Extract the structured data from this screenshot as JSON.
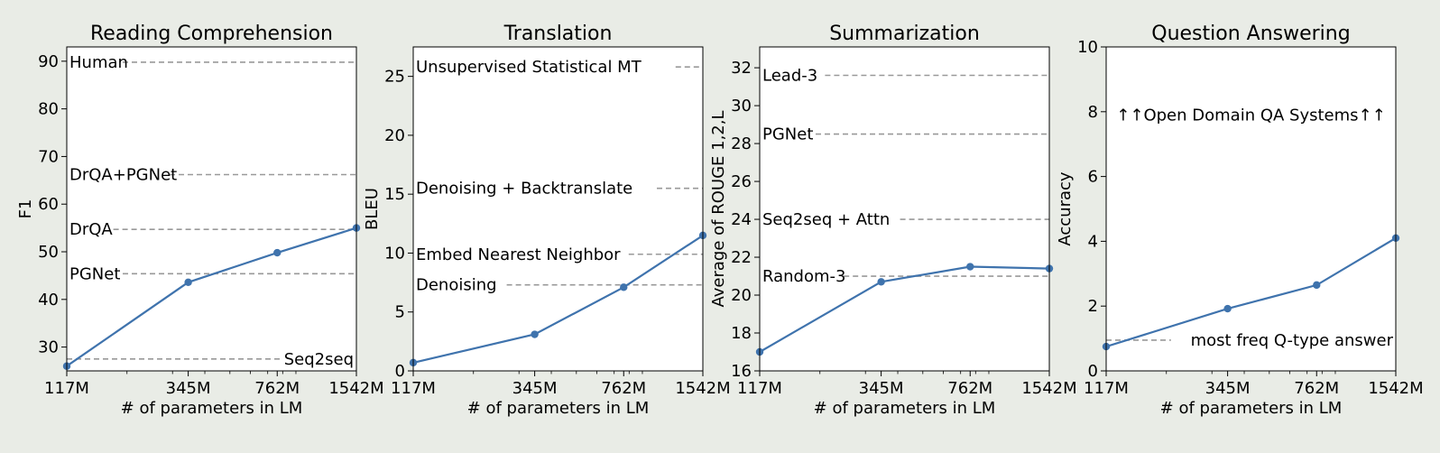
{
  "chart_data": [
    {
      "type": "line",
      "title": "Reading Comprehension",
      "xlabel": "# of parameters in LM",
      "ylabel": "F1",
      "x": [
        117,
        345,
        762,
        1542
      ],
      "x_tick_labels": [
        "117M",
        "345M",
        "762M",
        "1542M"
      ],
      "x_scale": "log",
      "xlim": [
        117,
        1542
      ],
      "ylim": [
        25,
        93
      ],
      "y_ticks": [
        30,
        40,
        50,
        60,
        70,
        80,
        90
      ],
      "series": [
        {
          "values": [
            26,
            43.6,
            49.8,
            55
          ]
        }
      ],
      "baselines": [
        {
          "label": "Human",
          "value": 89.8,
          "label_side": "left"
        },
        {
          "label": "DrQA+PGNet",
          "value": 66.2,
          "label_side": "left"
        },
        {
          "label": "DrQA",
          "value": 54.7,
          "label_side": "left"
        },
        {
          "label": "PGNet",
          "value": 45.4,
          "label_side": "left"
        },
        {
          "label": "Seq2seq",
          "value": 27.5,
          "label_side": "right"
        }
      ]
    },
    {
      "type": "line",
      "title": "Translation",
      "xlabel": "# of parameters in LM",
      "ylabel": "BLEU",
      "x": [
        117,
        345,
        762,
        1542
      ],
      "x_tick_labels": [
        "117M",
        "345M",
        "762M",
        "1542M"
      ],
      "x_scale": "log",
      "xlim": [
        117,
        1542
      ],
      "ylim": [
        0,
        27.5
      ],
      "y_ticks": [
        0,
        5,
        10,
        15,
        20,
        25
      ],
      "series": [
        {
          "values": [
            0.7,
            3.1,
            7.1,
            11.5
          ]
        }
      ],
      "baselines": [
        {
          "label": "Unsupervised Statistical MT",
          "value": 25.8,
          "label_side": "left"
        },
        {
          "label": "Denoising + Backtranslate",
          "value": 15.5,
          "label_side": "left"
        },
        {
          "label": "Embed Nearest Neighbor",
          "value": 9.9,
          "label_side": "left"
        },
        {
          "label": "Denoising",
          "value": 7.3,
          "label_side": "left"
        }
      ]
    },
    {
      "type": "line",
      "title": "Summarization",
      "xlabel": "# of parameters in LM",
      "ylabel": "Average of ROUGE 1,2,L",
      "x": [
        117,
        345,
        762,
        1542
      ],
      "x_tick_labels": [
        "117M",
        "345M",
        "762M",
        "1542M"
      ],
      "x_scale": "log",
      "xlim": [
        117,
        1542
      ],
      "ylim": [
        16,
        33.1
      ],
      "y_ticks": [
        16,
        18,
        20,
        22,
        24,
        26,
        28,
        30,
        32
      ],
      "series": [
        {
          "values": [
            17,
            20.7,
            21.5,
            21.4
          ]
        }
      ],
      "baselines": [
        {
          "label": "Lead-3",
          "value": 31.6,
          "label_side": "left"
        },
        {
          "label": "PGNet",
          "value": 28.5,
          "label_side": "left"
        },
        {
          "label": "Seq2seq + Attn",
          "value": 24,
          "label_side": "left"
        },
        {
          "label": "Random-3",
          "value": 21,
          "label_side": "left"
        }
      ]
    },
    {
      "type": "line",
      "title": "Question Answering",
      "xlabel": "# of parameters in LM",
      "ylabel": "Accuracy",
      "x": [
        117,
        345,
        762,
        1542
      ],
      "x_tick_labels": [
        "117M",
        "345M",
        "762M",
        "1542M"
      ],
      "x_scale": "log",
      "xlim": [
        117,
        1542
      ],
      "ylim": [
        0,
        10
      ],
      "y_ticks": [
        0,
        2,
        4,
        6,
        8,
        10
      ],
      "series": [
        {
          "values": [
            0.75,
            1.92,
            2.65,
            4.1
          ]
        }
      ],
      "baselines": [
        {
          "label": "most freq Q-type answer",
          "value": 0.95,
          "label_side": "right"
        }
      ],
      "annotations": [
        {
          "text": "↑↑Open Domain QA Systems↑↑",
          "y": 7.9
        }
      ]
    }
  ],
  "colors": {
    "line": "#3f73ad",
    "baseline": "#999999",
    "background": "#e9ece6",
    "plot_area": "#ffffff"
  }
}
